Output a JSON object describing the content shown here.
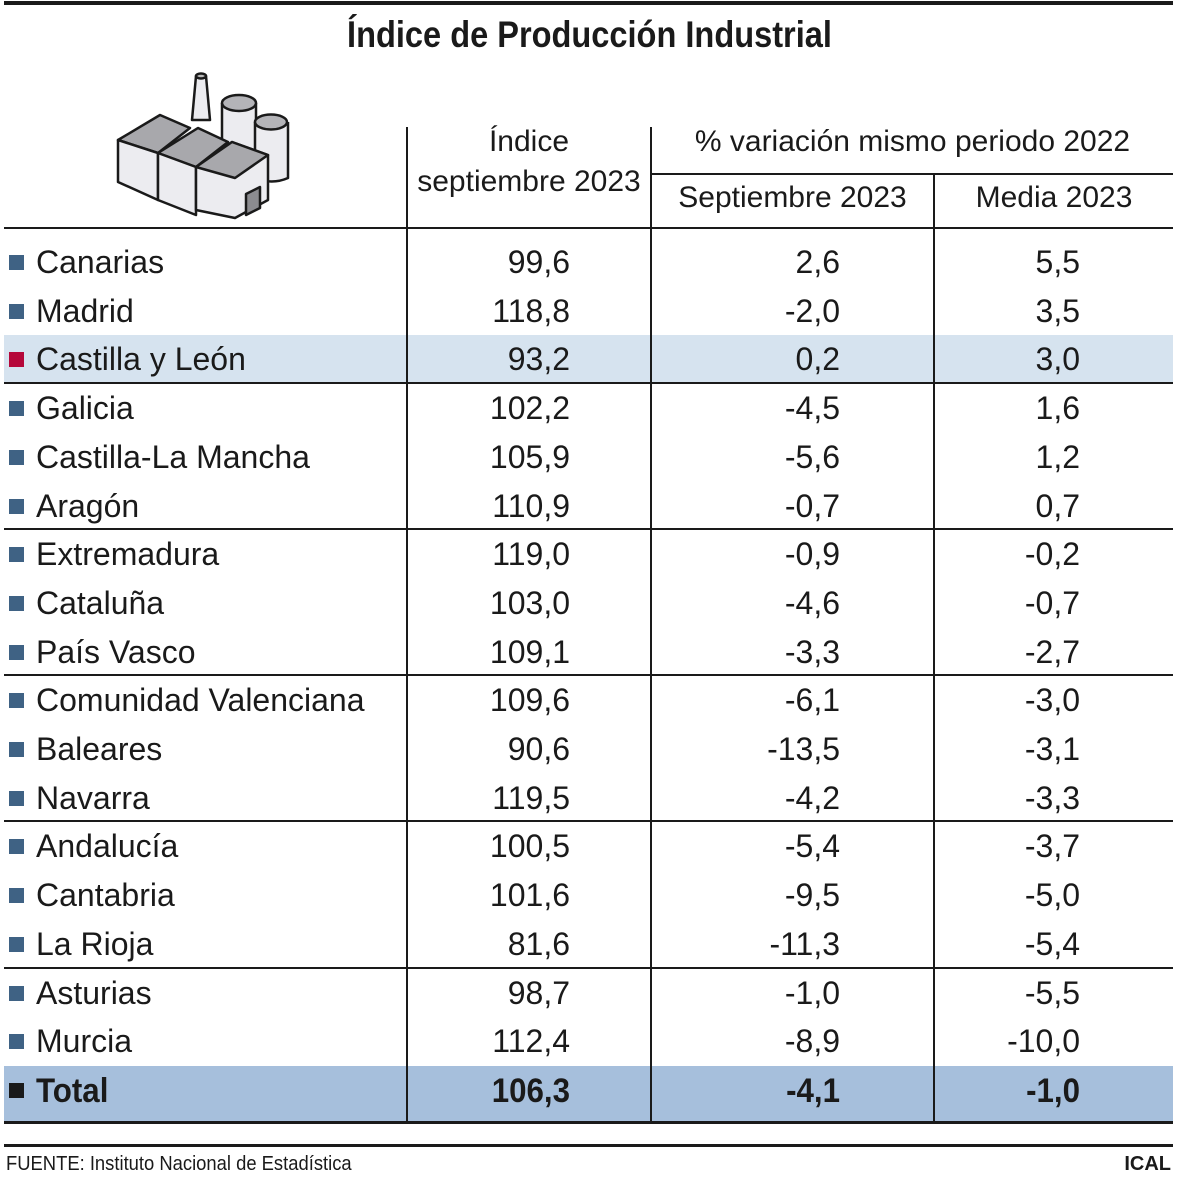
{
  "title": "Índice de Producción Industrial",
  "icon": "factory-icon",
  "colors": {
    "region_marker": "#3f6284",
    "highlight_marker": "#b5083a",
    "total_marker": "#1a1a1a",
    "highlight_row": "#d6e3ef",
    "total_row": "#a6bfdc"
  },
  "chart_data": {
    "type": "table",
    "columns": {
      "index_header": [
        "Índice",
        "septiembre 2023"
      ],
      "variation_group": "% variación mismo periodo 2022",
      "sept": "Septiembre 2023",
      "media": "Media 2023"
    },
    "rows": [
      {
        "region": "Canarias",
        "indice": "99,6",
        "sept": "2,6",
        "media": "5,5"
      },
      {
        "region": "Madrid",
        "indice": "118,8",
        "sept": "-2,0",
        "media": "3,5"
      },
      {
        "region": "Castilla y León",
        "indice": "93,2",
        "sept": "0,2",
        "media": "3,0",
        "highlight": true
      },
      {
        "region": "Galicia",
        "indice": "102,2",
        "sept": "-4,5",
        "media": "1,6"
      },
      {
        "region": "Castilla-La Mancha",
        "indice": "105,9",
        "sept": "-5,6",
        "media": "1,2"
      },
      {
        "region": "Aragón",
        "indice": "110,9",
        "sept": "-0,7",
        "media": "0,7"
      },
      {
        "region": "Extremadura",
        "indice": "119,0",
        "sept": "-0,9",
        "media": "-0,2"
      },
      {
        "region": "Cataluña",
        "indice": "103,0",
        "sept": "-4,6",
        "media": "-0,7"
      },
      {
        "region": "País Vasco",
        "indice": "109,1",
        "sept": "-3,3",
        "media": "-2,7"
      },
      {
        "region": "Comunidad Valenciana",
        "indice": "109,6",
        "sept": "-6,1",
        "media": "-3,0"
      },
      {
        "region": "Baleares",
        "indice": "90,6",
        "sept": "-13,5",
        "media": "-3,1"
      },
      {
        "region": "Navarra",
        "indice": "119,5",
        "sept": "-4,2",
        "media": "-3,3"
      },
      {
        "region": "Andalucía",
        "indice": "100,5",
        "sept": "-5,4",
        "media": "-3,7"
      },
      {
        "region": "Cantabria",
        "indice": "101,6",
        "sept": "-9,5",
        "media": "-5,0"
      },
      {
        "region": "La Rioja",
        "indice": "81,6",
        "sept": "-11,3",
        "media": "-5,4"
      },
      {
        "region": "Asturias",
        "indice": "98,7",
        "sept": "-1,0",
        "media": "-5,5"
      },
      {
        "region": "Murcia",
        "indice": "112,4",
        "sept": "-8,9",
        "media": "-10,0"
      }
    ],
    "total": {
      "region": "Total",
      "indice": "106,3",
      "sept": "-4,1",
      "media": "-1,0"
    }
  },
  "footer": {
    "source": "FUENTE: Instituto Nacional de Estadística",
    "credit": "ICAL"
  }
}
